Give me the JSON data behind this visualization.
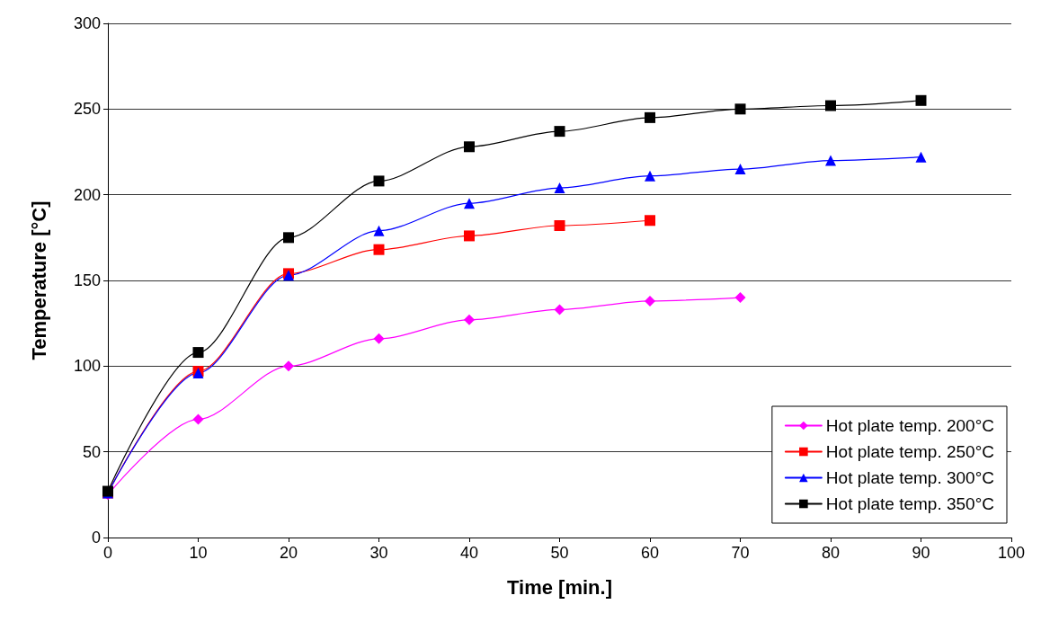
{
  "chart_data": {
    "type": "line",
    "xlabel": "Time [min.]",
    "ylabel": "Temperature [°C]",
    "xlim": [
      0,
      100
    ],
    "xticks": [
      0,
      10,
      20,
      30,
      40,
      50,
      60,
      70,
      80,
      90,
      100
    ],
    "ylim": [
      0,
      300
    ],
    "yticks": [
      0,
      50,
      100,
      150,
      200,
      250,
      300
    ],
    "grid": "y",
    "legend": "bottom right",
    "line_style": "solid",
    "series": [
      {
        "name": "Hot plate temp. 200°C",
        "color": "#ff00ff",
        "marker": "diamond",
        "x": [
          0,
          10,
          20,
          30,
          40,
          50,
          60,
          70
        ],
        "values": [
          25,
          69,
          100,
          116,
          127,
          133,
          138,
          140
        ]
      },
      {
        "name": "Hot plate temp. 250°C",
        "color": "#ff0000",
        "marker": "square",
        "x": [
          0,
          10,
          20,
          30,
          40,
          50,
          60
        ],
        "values": [
          26,
          97,
          154,
          168,
          176,
          182,
          185
        ]
      },
      {
        "name": "Hot plate temp. 300°C",
        "color": "#0000ff",
        "marker": "triangle",
        "x": [
          0,
          10,
          20,
          30,
          40,
          50,
          60,
          70,
          80,
          90
        ],
        "values": [
          26,
          96,
          153,
          179,
          195,
          204,
          211,
          215,
          220,
          222
        ]
      },
      {
        "name": "Hot plate temp. 350°C",
        "color": "#000000",
        "marker": "square",
        "x": [
          0,
          10,
          20,
          30,
          40,
          50,
          60,
          70,
          80,
          90
        ],
        "values": [
          27,
          108,
          175,
          208,
          228,
          237,
          245,
          250,
          252,
          255
        ]
      }
    ]
  }
}
